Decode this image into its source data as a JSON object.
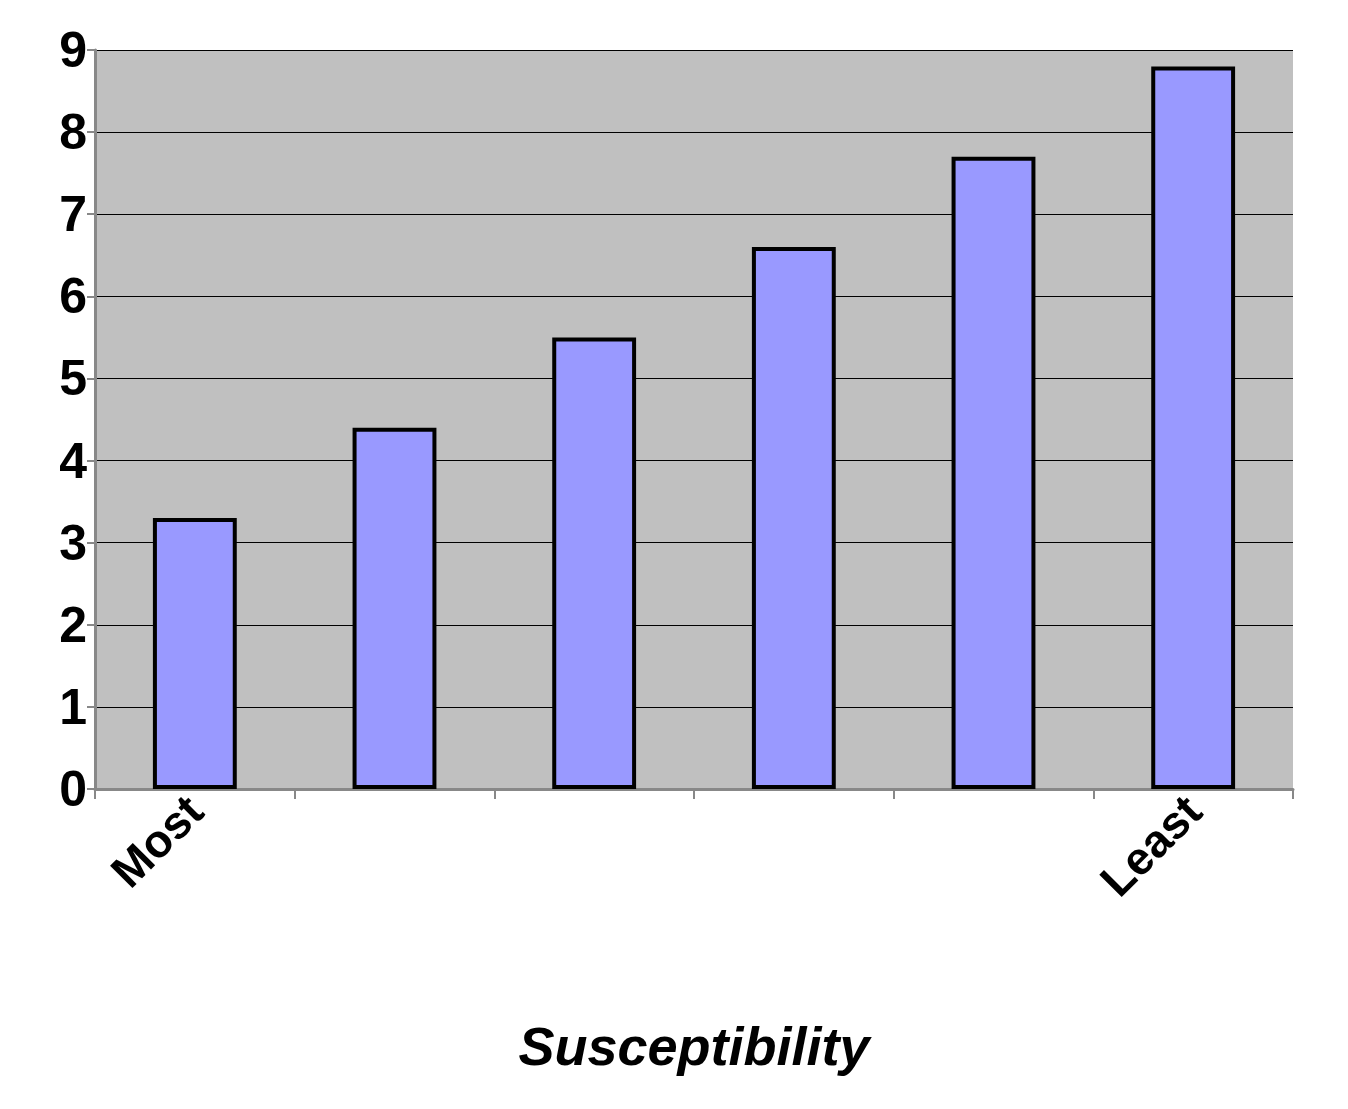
{
  "chart_data": {
    "type": "bar",
    "xlabel": "Susceptibility",
    "categories": [
      "Most",
      null,
      null,
      null,
      null,
      "Least"
    ],
    "values": [
      3.3,
      4.4,
      5.5,
      6.6,
      7.7,
      8.8
    ],
    "color": "#9999ff",
    "ylim": [
      0,
      9
    ],
    "yticks": [
      0,
      1,
      2,
      3,
      4,
      5,
      6,
      7,
      8,
      9
    ],
    "grid": "y"
  }
}
